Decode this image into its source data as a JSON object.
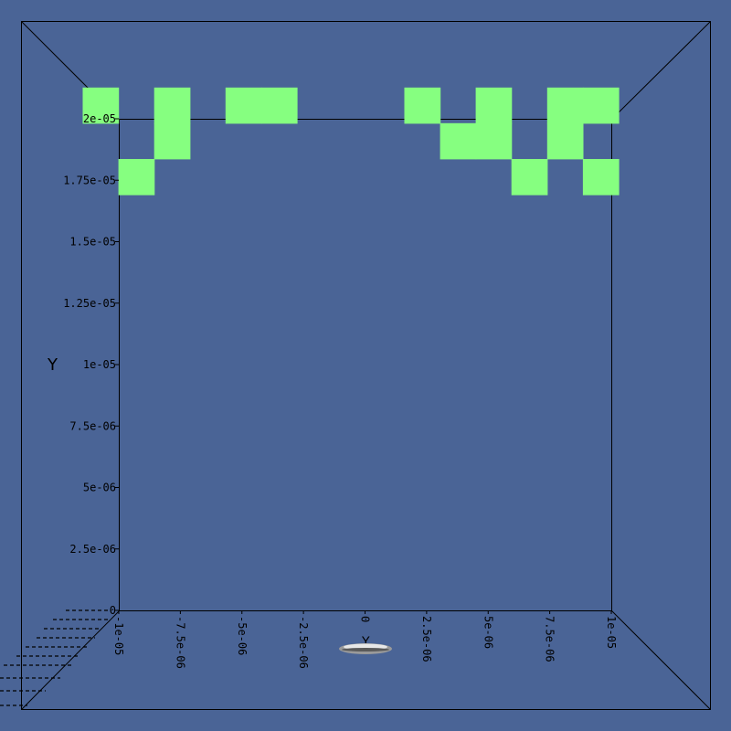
{
  "colors": {
    "background": "#4a6496",
    "cell": "#86ff80",
    "lines": "#000000"
  },
  "chart_data": {
    "type": "heatmap",
    "title": "",
    "xlabel": "Y",
    "ylabel": "Y",
    "xlim": [
      -1e-05,
      1e-05
    ],
    "ylim": [
      0,
      2e-05
    ],
    "x_ticks": [
      "-1e-05",
      "-7.5e-06",
      "-5e-06",
      "-2.5e-06",
      "0",
      "2.5e-06",
      "5e-06",
      "7.5e-06",
      "1e-05"
    ],
    "y_ticks": [
      "0",
      "2.5e-06",
      "5e-06",
      "7.5e-06",
      "1e-05",
      "1.25e-05",
      "1.5e-05",
      "1.75e-05",
      "2e-05"
    ],
    "cell_size": 1.45e-06,
    "cells": [
      {
        "x": -1.074e-05,
        "y": 2.0545e-05
      },
      {
        "x": -9.29e-06,
        "y": 1.764e-05
      },
      {
        "x": -7.84e-06,
        "y": 2.0545e-05
      },
      {
        "x": -7.84e-06,
        "y": 1.9095e-05
      },
      {
        "x": -4.94e-06,
        "y": 2.0545e-05
      },
      {
        "x": -3.49e-06,
        "y": 2.0545e-05
      },
      {
        "x": 2.32e-06,
        "y": 2.0545e-05
      },
      {
        "x": 3.77e-06,
        "y": 1.9095e-05
      },
      {
        "x": 5.22e-06,
        "y": 1.9095e-05
      },
      {
        "x": 5.22e-06,
        "y": 2.0545e-05
      },
      {
        "x": 6.67e-06,
        "y": 1.764e-05
      },
      {
        "x": 8.12e-06,
        "y": 2.0545e-05
      },
      {
        "x": 8.12e-06,
        "y": 1.9095e-05
      },
      {
        "x": 9.57e-06,
        "y": 2.0545e-05
      },
      {
        "x": 9.57e-06,
        "y": 1.764e-05
      }
    ]
  }
}
